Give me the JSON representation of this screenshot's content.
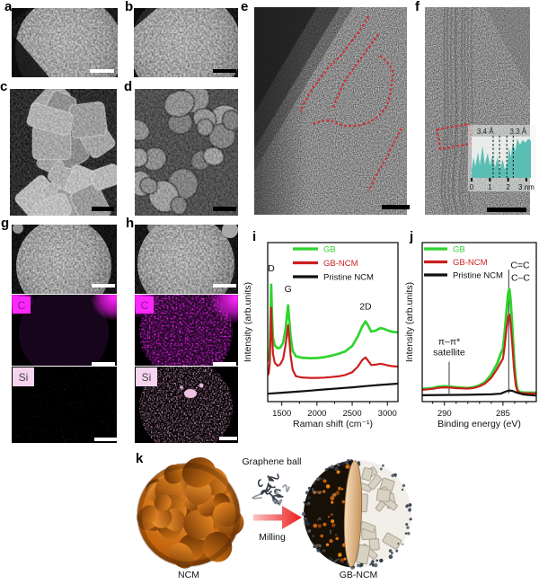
{
  "panels": {
    "a": {
      "label": "a"
    },
    "b": {
      "label": "b"
    },
    "c": {
      "label": "c"
    },
    "d": {
      "label": "d"
    },
    "e": {
      "label": "e"
    },
    "f": {
      "label": "f"
    },
    "g": {
      "label": "g"
    },
    "h": {
      "label": "h"
    },
    "i": {
      "label": "i"
    },
    "j": {
      "label": "j"
    },
    "k": {
      "label": "k"
    }
  },
  "eds": {
    "carbon": "C",
    "silicon": "Si"
  },
  "colors": {
    "gb_green": "#2fd32f",
    "gbncm_red": "#cb1f1f",
    "pristine_black": "#111111",
    "map_magenta": "#fa28fa",
    "map_pink": "#f6d3ee",
    "inset_teal": "#53bcb1",
    "annotation_red": "#d8242a",
    "arrow_red": "#ec1c1c",
    "ncm_orange": "#c96a12"
  },
  "schematic": {
    "graphene_ball_label": "Graphene ball",
    "milling_label": "Milling",
    "ncm_label": "NCM",
    "gb_ncm_label": "GB-NCM"
  },
  "chart_data": [
    {
      "id": "raman",
      "type": "line",
      "title": "",
      "xlabel": "Raman shift (cm⁻¹)",
      "ylabel": "Intensity (arb.units)",
      "xlim": [
        1300,
        3150
      ],
      "ylim": [
        0,
        100
      ],
      "xticks": [
        1500,
        2000,
        2500,
        3000
      ],
      "minor_xticks": [
        1750,
        2250,
        2750
      ],
      "legend_position": "top-left-inside",
      "grid": false,
      "peak_labels": [
        {
          "text": "D",
          "x": 1350,
          "y": 82
        },
        {
          "text": "G",
          "x": 1590,
          "y": 69
        },
        {
          "text": "2D",
          "x": 2690,
          "y": 58
        }
      ],
      "series": [
        {
          "name": "GB",
          "color": "#2fd32f",
          "width": 2.7,
          "points": [
            [
              1300,
              25.5
            ],
            [
              1315,
              27
            ],
            [
              1330,
              34
            ],
            [
              1340,
              52
            ],
            [
              1350,
              73.5
            ],
            [
              1360,
              56
            ],
            [
              1375,
              40
            ],
            [
              1400,
              35.5
            ],
            [
              1440,
              33.5
            ],
            [
              1480,
              34
            ],
            [
              1520,
              37
            ],
            [
              1555,
              46
            ],
            [
              1575,
              55
            ],
            [
              1590,
              60.5
            ],
            [
              1605,
              52
            ],
            [
              1625,
              41
            ],
            [
              1655,
              32
            ],
            [
              1700,
              28.5
            ],
            [
              1780,
              27.6
            ],
            [
              1900,
              27.3
            ],
            [
              2000,
              27.4
            ],
            [
              2100,
              27.9
            ],
            [
              2200,
              28.8
            ],
            [
              2300,
              30
            ],
            [
              2400,
              31.5
            ],
            [
              2500,
              35
            ],
            [
              2580,
              41
            ],
            [
              2640,
              47
            ],
            [
              2690,
              50.5
            ],
            [
              2730,
              47.5
            ],
            [
              2770,
              44
            ],
            [
              2830,
              44.6
            ],
            [
              2900,
              46.2
            ],
            [
              2950,
              45.8
            ],
            [
              3000,
              44.8
            ],
            [
              3060,
              44
            ],
            [
              3150,
              43.5
            ]
          ]
        },
        {
          "name": "GB-NCM",
          "color": "#cb1f1f",
          "width": 2.2,
          "points": [
            [
              1300,
              16.5
            ],
            [
              1315,
              18
            ],
            [
              1330,
              25
            ],
            [
              1340,
              42
            ],
            [
              1350,
              59
            ],
            [
              1360,
              44
            ],
            [
              1375,
              30
            ],
            [
              1400,
              24.5
            ],
            [
              1440,
              22.5
            ],
            [
              1480,
              23.5
            ],
            [
              1520,
              27
            ],
            [
              1555,
              36
            ],
            [
              1575,
              43
            ],
            [
              1590,
              48
            ],
            [
              1605,
              40
            ],
            [
              1625,
              29
            ],
            [
              1655,
              20
            ],
            [
              1700,
              16
            ],
            [
              1780,
              15.2
            ],
            [
              1900,
              14.9
            ],
            [
              2000,
              14.9
            ],
            [
              2100,
              15.1
            ],
            [
              2200,
              15.4
            ],
            [
              2300,
              15.9
            ],
            [
              2400,
              16.7
            ],
            [
              2500,
              18.5
            ],
            [
              2580,
              22
            ],
            [
              2640,
              26
            ],
            [
              2690,
              27.8
            ],
            [
              2730,
              25.5
            ],
            [
              2770,
              23
            ],
            [
              2830,
              23.2
            ],
            [
              2900,
              23.8
            ],
            [
              2950,
              23.4
            ],
            [
              3000,
              22.8
            ],
            [
              3060,
              22.3
            ],
            [
              3150,
              22
            ]
          ]
        },
        {
          "name": "Pristine NCM",
          "color": "#111111",
          "width": 2.2,
          "points": [
            [
              1300,
              5
            ],
            [
              1500,
              5.6
            ],
            [
              1700,
              6.2
            ],
            [
              1900,
              6.9
            ],
            [
              2100,
              7.6
            ],
            [
              2300,
              8.3
            ],
            [
              2500,
              9
            ],
            [
              2700,
              9.8
            ],
            [
              2900,
              10.5
            ],
            [
              3150,
              11.3
            ]
          ]
        }
      ]
    },
    {
      "id": "xps",
      "type": "line",
      "title": "",
      "xlabel": "Binding energy (eV)",
      "ylabel": "Intensity (arb.units)",
      "xlim": [
        291.9,
        282.15
      ],
      "ylim": [
        0,
        100
      ],
      "xticks": [
        290,
        285
      ],
      "minor_xticks": [
        291,
        289,
        288,
        287,
        286,
        284,
        283
      ],
      "legend_position": "top-left-inside",
      "grid": false,
      "annotations": [
        {
          "text": "C=C",
          "x": 284.35,
          "y": 84,
          "anchor": "start"
        },
        {
          "text": "C–C",
          "x": 284.3,
          "y": 76,
          "anchor": "start"
        },
        {
          "text": "π–π*",
          "x": 289.6,
          "y": 36
        },
        {
          "text": "satellite",
          "x": 289.6,
          "y": 29
        }
      ],
      "vlines": [
        {
          "x": 289.6,
          "y1": 5,
          "y2": 25
        },
        {
          "x": 284.5,
          "y1": 5,
          "y2": 83
        }
      ],
      "series": [
        {
          "name": "GB",
          "color": "#2fd32f",
          "width": 3,
          "points": [
            [
              291.9,
              7.9
            ],
            [
              291,
              8.5
            ],
            [
              290.5,
              9.3
            ],
            [
              290,
              9.6
            ],
            [
              289.5,
              9.3
            ],
            [
              289,
              9
            ],
            [
              288.5,
              8.7
            ],
            [
              288,
              8.5
            ],
            [
              287.5,
              9
            ],
            [
              287,
              10.2
            ],
            [
              286.5,
              12.4
            ],
            [
              286,
              17
            ],
            [
              285.5,
              23.7
            ],
            [
              285.2,
              30
            ],
            [
              285,
              33.3
            ],
            [
              284.85,
              43
            ],
            [
              284.7,
              56
            ],
            [
              284.55,
              68
            ],
            [
              284.45,
              70.6
            ],
            [
              284.35,
              64
            ],
            [
              284.2,
              46
            ],
            [
              284.05,
              26
            ],
            [
              283.9,
              13
            ],
            [
              283.75,
              7
            ],
            [
              283.5,
              5.8
            ],
            [
              283,
              5.6
            ],
            [
              282.15,
              5.6
            ]
          ]
        },
        {
          "name": "GB-NCM",
          "color": "#cb1f1f",
          "width": 2.2,
          "points": [
            [
              291.9,
              7.4
            ],
            [
              291,
              8
            ],
            [
              290.5,
              8.7
            ],
            [
              290,
              9
            ],
            [
              289.5,
              8.8
            ],
            [
              289,
              8.5
            ],
            [
              288.5,
              8.3
            ],
            [
              288,
              8.2
            ],
            [
              287.5,
              8.6
            ],
            [
              287,
              9.6
            ],
            [
              286.5,
              11.5
            ],
            [
              286,
              15
            ],
            [
              285.5,
              20.5
            ],
            [
              285,
              27
            ],
            [
              284.85,
              35
            ],
            [
              284.7,
              46
            ],
            [
              284.55,
              53.5
            ],
            [
              284.45,
              54.8
            ],
            [
              284.35,
              50
            ],
            [
              284.2,
              36
            ],
            [
              284.05,
              20
            ],
            [
              283.9,
              10
            ],
            [
              283.75,
              6.3
            ],
            [
              283.5,
              5.4
            ],
            [
              283,
              5.2
            ],
            [
              282.15,
              5.2
            ]
          ]
        },
        {
          "name": "Pristine NCM",
          "color": "#111111",
          "width": 2.2,
          "points": [
            [
              291.9,
              4
            ],
            [
              290,
              4.2
            ],
            [
              288,
              4.3
            ],
            [
              286,
              4.6
            ],
            [
              285.2,
              5
            ],
            [
              284.8,
              6.2
            ],
            [
              284.5,
              7
            ],
            [
              284.2,
              6.8
            ],
            [
              283.8,
              5.6
            ],
            [
              283.2,
              4.4
            ],
            [
              282.15,
              3.8
            ]
          ]
        }
      ]
    },
    {
      "id": "lattice-profile-inset",
      "type": "area",
      "title": "",
      "xlabel": "",
      "ylabel": "",
      "xlim": [
        0,
        3.25
      ],
      "ylim": [
        0,
        1
      ],
      "xticks": [
        0,
        1,
        2,
        3
      ],
      "xtick_labels": [
        "0",
        "1",
        "2",
        "3 nm"
      ],
      "color": "#53bcb1",
      "dashed_lines_nm": [
        1.18,
        1.53,
        1.93,
        2.28
      ],
      "spacing_labels": [
        {
          "text": "3.4 Å",
          "x": 0.75
        },
        {
          "text": "3.3 Å",
          "x": 2.55
        }
      ],
      "points": [
        [
          0,
          0.2
        ],
        [
          0.1,
          0.5
        ],
        [
          0.2,
          0.28
        ],
        [
          0.35,
          0.62
        ],
        [
          0.45,
          0.3
        ],
        [
          0.6,
          0.78
        ],
        [
          0.72,
          0.32
        ],
        [
          0.88,
          0.6
        ],
        [
          1.0,
          0.3
        ],
        [
          1.15,
          0.55
        ],
        [
          1.28,
          0.25
        ],
        [
          1.42,
          0.5
        ],
        [
          1.55,
          0.22
        ],
        [
          1.7,
          0.45
        ],
        [
          1.82,
          0.2
        ],
        [
          1.95,
          0.35
        ],
        [
          2.05,
          0.75
        ],
        [
          2.15,
          0.5
        ],
        [
          2.25,
          0.85
        ],
        [
          2.4,
          0.65
        ],
        [
          2.5,
          0.95
        ],
        [
          2.65,
          0.8
        ],
        [
          2.8,
          0.92
        ],
        [
          2.95,
          0.85
        ],
        [
          3.1,
          0.95
        ],
        [
          3.25,
          0.9
        ]
      ]
    }
  ]
}
